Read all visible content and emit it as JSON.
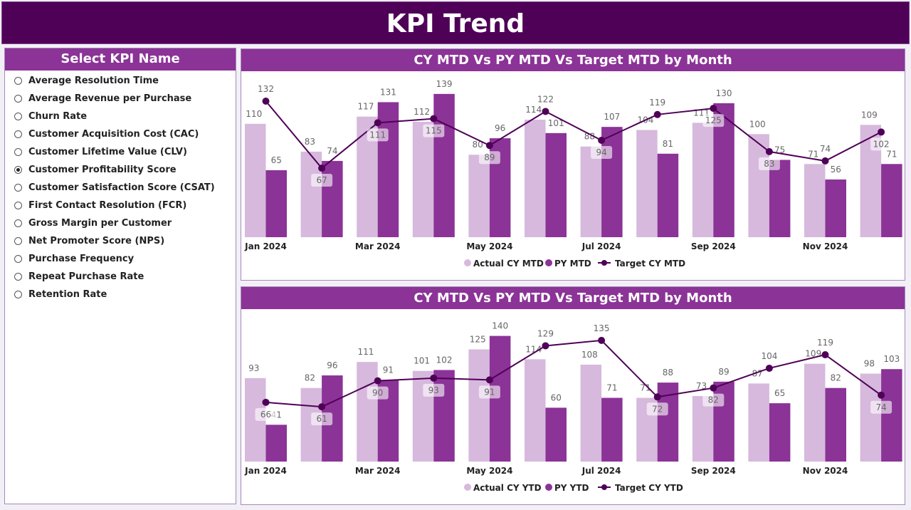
{
  "header": {
    "title": "KPI Trend"
  },
  "slicer": {
    "title": "Select KPI Name",
    "selected": "Customer Profitability Score",
    "items": [
      "Average Resolution Time",
      "Average Revenue per Purchase",
      "Churn Rate",
      "Customer Acquisition Cost (CAC)",
      "Customer Lifetime Value (CLV)",
      "Customer Profitability Score",
      "Customer Satisfaction Score (CSAT)",
      "First Contact Resolution (FCR)",
      "Gross Margin per Customer",
      "Net Promoter Score (NPS)",
      "Purchase Frequency",
      "Repeat Purchase Rate",
      "Retention Rate"
    ]
  },
  "colors": {
    "actual": "#d7b9dd",
    "py": "#8b3397",
    "target": "#4f0157"
  },
  "chart_data": [
    {
      "type": "bar+line",
      "title": "CY MTD Vs PY MTD Vs Target MTD by Month",
      "categories": [
        "Jan 2024",
        "Feb 2024",
        "Mar 2024",
        "Apr 2024",
        "May 2024",
        "Jun 2024",
        "Jul 2024",
        "Aug 2024",
        "Sep 2024",
        "Oct 2024",
        "Nov 2024",
        "Dec 2024"
      ],
      "tick_labels": [
        "Jan 2024",
        "",
        "Mar 2024",
        "",
        "May 2024",
        "",
        "Jul 2024",
        "",
        "Sep 2024",
        "",
        "Nov 2024",
        ""
      ],
      "legend": [
        "Actual CY MTD",
        "PY MTD",
        "Target CY MTD"
      ],
      "legend_position": "bottom",
      "series": [
        {
          "name": "Actual CY MTD",
          "values": [
            110,
            83,
            117,
            112,
            80,
            114,
            88,
            104,
            111,
            100,
            71,
            109
          ]
        },
        {
          "name": "PY MTD",
          "values": [
            65,
            74,
            131,
            139,
            96,
            101,
            107,
            81,
            130,
            75,
            56,
            71
          ]
        },
        {
          "name": "Target CY MTD",
          "values": [
            132,
            67,
            111,
            115,
            89,
            122,
            94,
            119,
            125,
            83,
            74,
            102
          ]
        }
      ]
    },
    {
      "type": "bar+line",
      "title": "CY MTD Vs PY MTD Vs Target MTD by Month",
      "categories": [
        "Jan 2024",
        "Feb 2024",
        "Mar 2024",
        "Apr 2024",
        "May 2024",
        "Jun 2024",
        "Jul 2024",
        "Aug 2024",
        "Sep 2024",
        "Oct 2024",
        "Nov 2024",
        "Dec 2024"
      ],
      "tick_labels": [
        "Jan 2024",
        "",
        "Mar 2024",
        "",
        "May 2024",
        "",
        "Jul 2024",
        "",
        "Sep 2024",
        "",
        "Nov 2024",
        ""
      ],
      "legend": [
        "Actual CY YTD",
        "PY YTD",
        "Target CY YTD"
      ],
      "legend_position": "bottom",
      "series": [
        {
          "name": "Actual CY YTD",
          "values": [
            93,
            82,
            111,
            101,
            125,
            114,
            108,
            71,
            73,
            87,
            109,
            98
          ]
        },
        {
          "name": "PY YTD",
          "values": [
            41,
            96,
            91,
            102,
            140,
            60,
            71,
            88,
            89,
            65,
            82,
            103
          ]
        },
        {
          "name": "Target CY YTD",
          "values": [
            66,
            61,
            90,
            93,
            91,
            129,
            135,
            72,
            82,
            104,
            119,
            74
          ]
        }
      ]
    }
  ]
}
